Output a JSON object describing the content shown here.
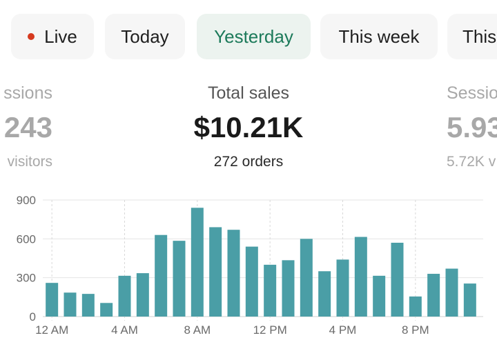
{
  "tabs": [
    {
      "label": "Live",
      "has_dot": true
    },
    {
      "label": "Today"
    },
    {
      "label": "Yesterday",
      "active": true
    },
    {
      "label": "This week"
    },
    {
      "label": "This"
    }
  ],
  "metrics": {
    "left": {
      "label": "ssions",
      "value": "243",
      "sub": "visitors"
    },
    "center": {
      "label": "Total sales",
      "value": "$10.21K",
      "sub": "272 orders"
    },
    "right": {
      "label": "Sessio",
      "value": "5.93",
      "sub": "5.72K v"
    }
  },
  "colors": {
    "bar": "#4a9ea6",
    "active_tab_text": "#1c7a5a",
    "live_dot": "#d63a1f"
  },
  "chart_data": {
    "type": "bar",
    "x_tick_labels": [
      "12 AM",
      "4 AM",
      "8 AM",
      "12 PM",
      "4 PM",
      "8 PM"
    ],
    "y_tick_labels": [
      "0",
      "300",
      "600",
      "900"
    ],
    "ylim": [
      0,
      900
    ],
    "hours": [
      0,
      1,
      2,
      3,
      4,
      5,
      6,
      7,
      8,
      9,
      10,
      11,
      12,
      13,
      14,
      15,
      16,
      17,
      18,
      19,
      20,
      21,
      22,
      23
    ],
    "values": [
      260,
      185,
      175,
      105,
      315,
      335,
      630,
      585,
      840,
      690,
      670,
      540,
      400,
      435,
      600,
      350,
      440,
      615,
      315,
      570,
      155,
      330,
      370,
      255
    ],
    "grid": true
  }
}
